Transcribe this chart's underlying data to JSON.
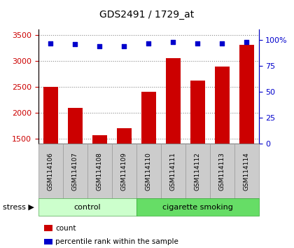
{
  "title": "GDS2491 / 1729_at",
  "samples": [
    "GSM114106",
    "GSM114107",
    "GSM114108",
    "GSM114109",
    "GSM114110",
    "GSM114111",
    "GSM114112",
    "GSM114113",
    "GSM114114"
  ],
  "counts": [
    2500,
    2100,
    1560,
    1700,
    2400,
    3050,
    2620,
    2890,
    3310
  ],
  "percentile_ranks": [
    97,
    96,
    94,
    94,
    97,
    98,
    97,
    97,
    98
  ],
  "bar_color": "#cc0000",
  "dot_color": "#0000cc",
  "ylim_left": [
    1400,
    3600
  ],
  "ylim_right": [
    0,
    110
  ],
  "yticks_left": [
    1500,
    2000,
    2500,
    3000,
    3500
  ],
  "yticks_right": [
    0,
    25,
    50,
    75,
    100
  ],
  "n_control": 4,
  "n_smoking": 5,
  "control_label": "control",
  "smoking_label": "cigarette smoking",
  "stress_label": "stress",
  "control_bg": "#ccffcc",
  "smoking_bg": "#66dd66",
  "sample_box_bg": "#cccccc",
  "legend_count_label": "count",
  "legend_pct_label": "percentile rank within the sample",
  "grid_color": "#888888",
  "plot_bg": "#ffffff"
}
